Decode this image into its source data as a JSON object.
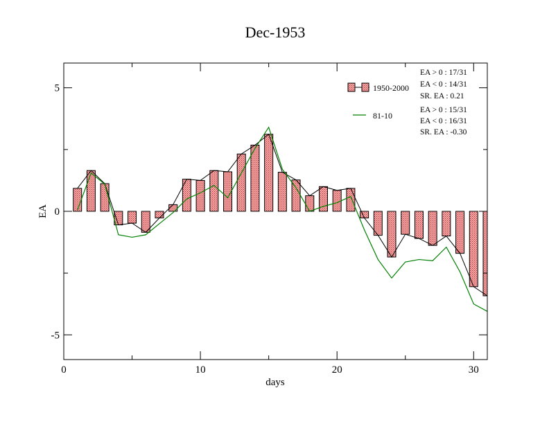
{
  "chart_data": {
    "type": "bar",
    "title": "Dec-1953",
    "xlabel": "days",
    "ylabel": "EA",
    "xlim": [
      0,
      31
    ],
    "ylim": [
      -6,
      6
    ],
    "xticks": [
      0,
      10,
      20,
      30
    ],
    "yticks": [
      -5,
      0,
      5
    ],
    "xtick_labels": [
      "0",
      "10",
      "20",
      "30"
    ],
    "ytick_labels": [
      "-5",
      "0",
      "5"
    ],
    "grid": false,
    "legend_position": "top-right",
    "x": [
      1,
      2,
      3,
      4,
      5,
      6,
      7,
      8,
      9,
      10,
      11,
      12,
      13,
      14,
      15,
      16,
      17,
      18,
      19,
      20,
      21,
      22,
      23,
      24,
      25,
      26,
      27,
      28,
      29,
      30,
      31
    ],
    "series": [
      {
        "name": "1950-2000",
        "kind": "bar+line",
        "color": "#f08080",
        "values": [
          0.93,
          1.65,
          1.12,
          -0.55,
          -0.48,
          -0.85,
          -0.27,
          0.27,
          1.3,
          1.25,
          1.65,
          1.6,
          2.32,
          2.68,
          3.12,
          1.58,
          1.27,
          0.63,
          1.0,
          0.85,
          0.93,
          -0.27,
          -0.97,
          -1.85,
          -0.93,
          -1.1,
          -1.38,
          -1.0,
          -1.7,
          -3.05,
          -3.42
        ]
      },
      {
        "name": "81-10",
        "kind": "line",
        "color": "#008000",
        "values": [
          0.05,
          1.55,
          1.1,
          -0.95,
          -1.05,
          -0.95,
          -0.5,
          -0.05,
          0.5,
          0.75,
          1.05,
          0.55,
          1.55,
          2.55,
          3.4,
          1.7,
          0.95,
          0.0,
          0.2,
          0.35,
          0.6,
          -0.75,
          -1.95,
          -2.7,
          -2.05,
          -1.95,
          -2.0,
          -1.45,
          -2.45,
          -3.75,
          -4.05
        ]
      }
    ],
    "annotations": {
      "group1": [
        "EA > 0 : 17/31",
        "EA < 0 : 14/31",
        "SR. EA :  0.21"
      ],
      "group2": [
        "EA > 0 : 15/31",
        "EA < 0 : 16/31",
        "SR. EA : -0.30"
      ]
    }
  }
}
